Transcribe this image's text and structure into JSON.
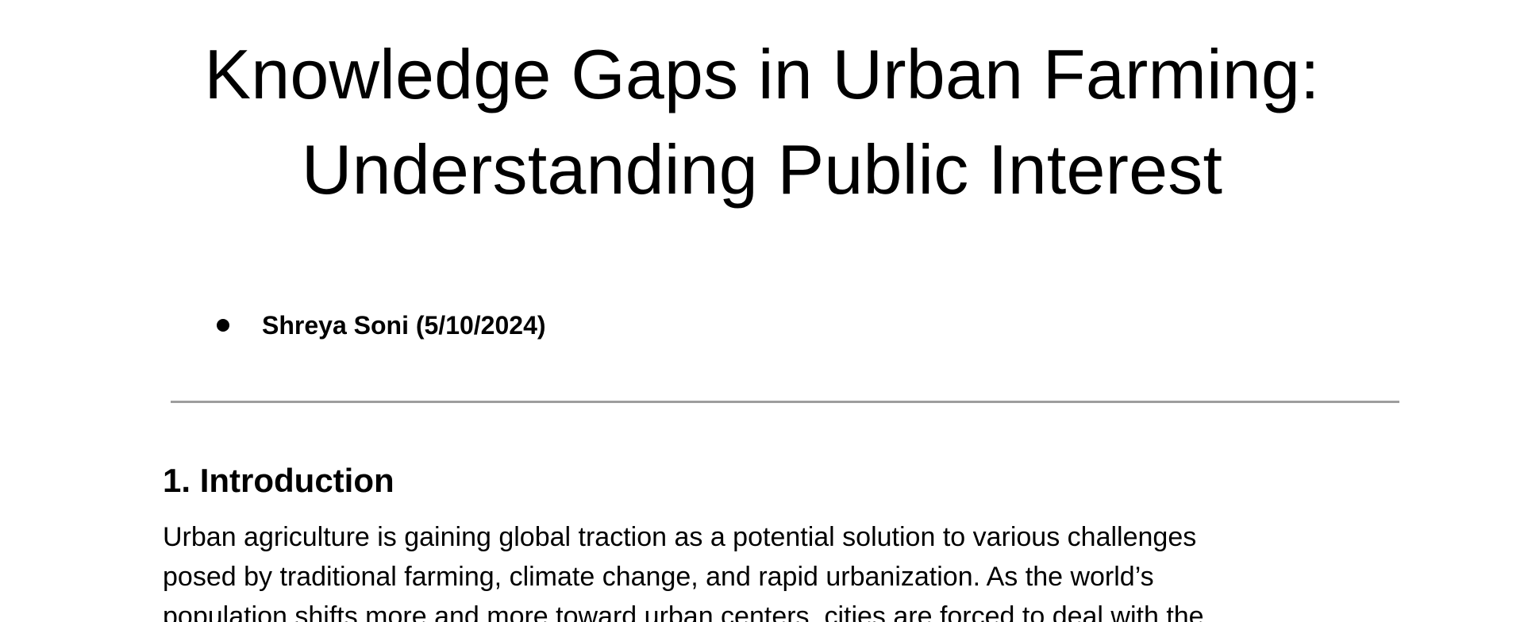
{
  "document": {
    "title_lines": [
      "Knowledge Gaps in Urban Farming:",
      "Understanding Public Interest"
    ],
    "authors": [
      "Shreya Soni (5/10/2024)"
    ],
    "sections": [
      {
        "heading": "1. Introduction",
        "paragraph_lines": [
          "Urban agriculture is gaining global traction as a potential solution to various challenges",
          "posed by traditional farming, climate change, and rapid urbanization. As the world’s",
          "population shifts more and more toward urban centers, cities are forced to deal with the"
        ]
      }
    ]
  }
}
